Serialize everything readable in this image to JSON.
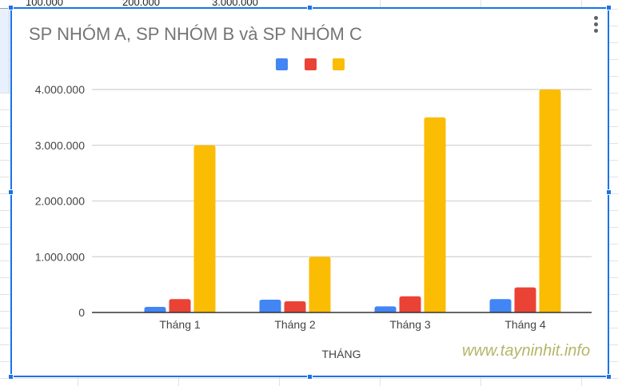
{
  "sheet": {
    "row_values": [
      "100.000",
      "200.000",
      "3.000.000"
    ]
  },
  "chart": {
    "menu_icon": "more-vert-icon"
  },
  "watermark": "www.tayninhit.info",
  "chart_data": {
    "type": "bar",
    "title": "SP NHÓM A, SP NHÓM B và SP NHÓM C",
    "xlabel": "THÁNG",
    "ylabel": "",
    "categories": [
      "Tháng 1",
      "Tháng 2",
      "Tháng 3",
      "Tháng 4"
    ],
    "series": [
      {
        "color": "#4285f4",
        "values": [
          100000,
          230000,
          110000,
          240000
        ]
      },
      {
        "color": "#ea4335",
        "values": [
          240000,
          200000,
          290000,
          450000
        ]
      },
      {
        "color": "#fbbc04",
        "values": [
          3000000,
          1000000,
          3500000,
          4000000
        ]
      }
    ],
    "ylim": [
      0,
      4000000
    ],
    "yticks": [
      0,
      1000000,
      2000000,
      3000000,
      4000000
    ],
    "ytick_labels": [
      "0",
      "1.000.000",
      "2.000.000",
      "3.000.000",
      "4.000.000"
    ],
    "grid": true,
    "legend_position": "top"
  }
}
